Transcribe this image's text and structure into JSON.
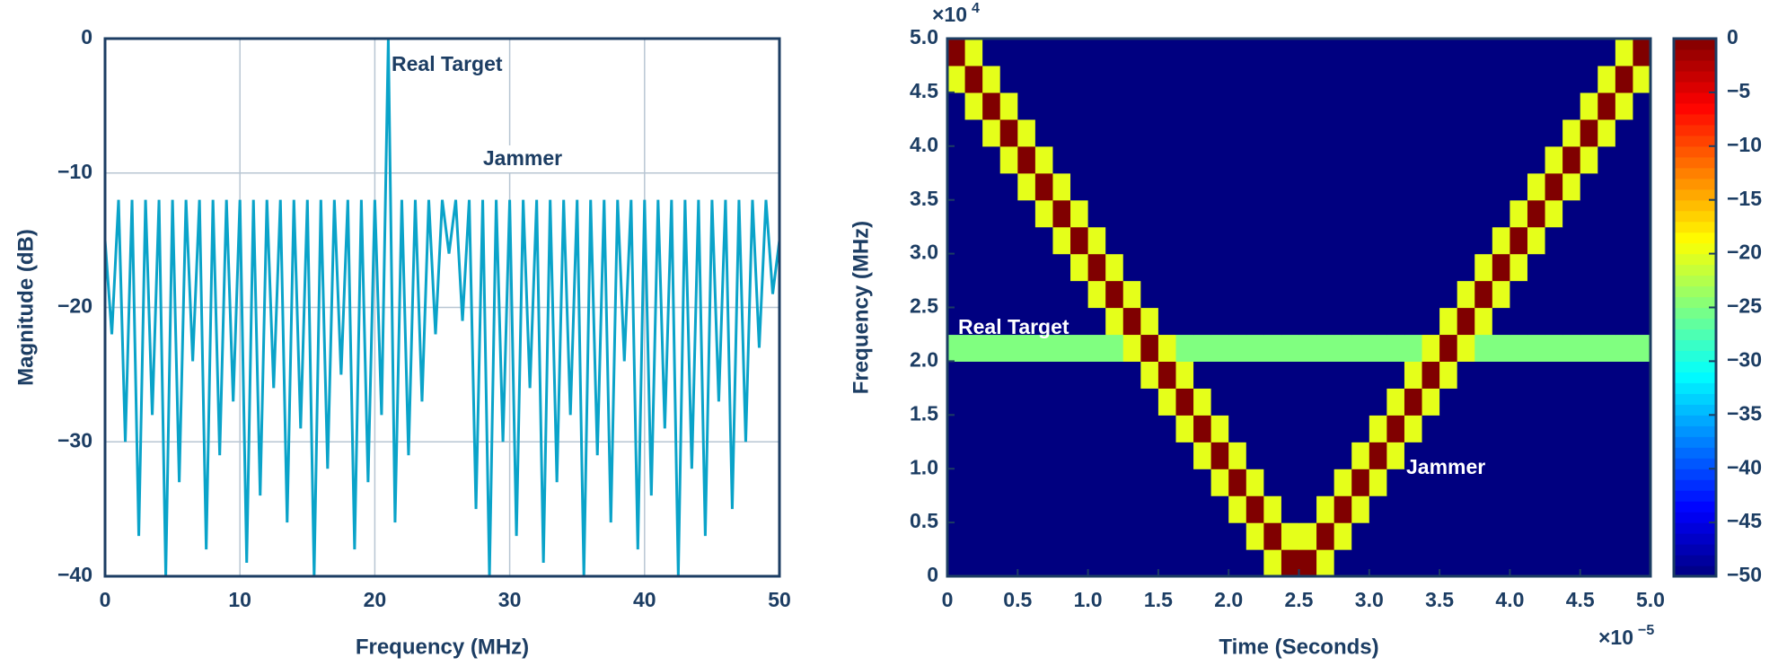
{
  "chart_data": [
    {
      "type": "line",
      "xlabel": "Frequency (MHz)",
      "ylabel": "Magnitude (dB)",
      "color": "#0aa3c9",
      "grid": true,
      "xlim": [
        0,
        50
      ],
      "ylim": [
        -40,
        0
      ],
      "xticks": [
        0,
        10,
        20,
        30,
        40,
        50
      ],
      "yticks": [
        0,
        {
          "value": -10,
          "label": "−10"
        },
        {
          "value": -20,
          "label": "−20"
        },
        {
          "value": -30,
          "label": "−30"
        },
        {
          "value": -40,
          "label": "−40"
        }
      ],
      "annotations": [
        "Real Target",
        "Jammer"
      ],
      "x": [
        0,
        0.5,
        1,
        1.5,
        2,
        2.5,
        3,
        3.5,
        4,
        4.5,
        5,
        5.5,
        6,
        6.5,
        7,
        7.5,
        8,
        8.5,
        9,
        9.5,
        10,
        10.5,
        11,
        11.5,
        12,
        12.5,
        13,
        13.5,
        14,
        14.5,
        15,
        15.5,
        16,
        16.5,
        17,
        17.5,
        18,
        18.5,
        19,
        19.5,
        20,
        20.5,
        21,
        21.5,
        22,
        22.5,
        23,
        23.5,
        24,
        24.5,
        25,
        25.5,
        26,
        26.5,
        27,
        27.5,
        28,
        28.5,
        29,
        29.5,
        30,
        30.5,
        31,
        31.5,
        32,
        32.5,
        33,
        33.5,
        34,
        34.5,
        35,
        35.5,
        36,
        36.5,
        37,
        37.5,
        38,
        38.5,
        39,
        39.5,
        40,
        40.5,
        41,
        41.5,
        42,
        42.5,
        43,
        43.5,
        44,
        44.5,
        45,
        45.5,
        46,
        46.5,
        47,
        47.5,
        48,
        48.5,
        49,
        49.5,
        50
      ],
      "values": [
        -15,
        -22,
        -12,
        -30,
        -12,
        -37,
        -12,
        -28,
        -12,
        -40,
        -12,
        -33,
        -12,
        -24,
        -12,
        -38,
        -12,
        -31,
        -12,
        -27,
        -12,
        -39,
        -12,
        -34,
        -12,
        -26,
        -12,
        -36,
        -12,
        -29,
        -12,
        -40,
        -12,
        -32,
        -12,
        -25,
        -12,
        -38,
        -12,
        -33,
        -12,
        -28,
        0,
        -36,
        -12,
        -31,
        -12,
        -27,
        -12,
        -22,
        -12,
        -16,
        -12,
        -21,
        -12,
        -35,
        -12,
        -40,
        -12,
        -30,
        -12,
        -37,
        -12,
        -26,
        -12,
        -39,
        -12,
        -33,
        -12,
        -28,
        -12,
        -40,
        -12,
        -31,
        -12,
        -36,
        -12,
        -24,
        -12,
        -38,
        -12,
        -34,
        -12,
        -29,
        -12,
        -40,
        -12,
        -32,
        -12,
        -37,
        -12,
        -27,
        -12,
        -35,
        -12,
        -30,
        -12,
        -23,
        -12,
        -19,
        -15
      ]
    },
    {
      "type": "heatmap",
      "xlabel": "Time (Seconds)",
      "ylabel": "Frequency (MHz)",
      "colormap": "jet",
      "xlim": [
        0,
        5
      ],
      "ylim": [
        0,
        5
      ],
      "x_multiplier": {
        "base": "×10",
        "exponent": "−5"
      },
      "y_multiplier": {
        "base": "×10",
        "exponent": "4"
      },
      "xticks": [
        0,
        0.5,
        {
          "value": 1,
          "label": "1.0"
        },
        1.5,
        {
          "value": 2,
          "label": "2.0"
        },
        2.5,
        {
          "value": 3,
          "label": "3.0"
        },
        3.5,
        {
          "value": 4,
          "label": "4.0"
        },
        4.5,
        {
          "value": 5,
          "label": "5.0"
        }
      ],
      "yticks": [
        0,
        0.5,
        {
          "value": 1,
          "label": "1.0"
        },
        1.5,
        {
          "value": 2,
          "label": "2.0"
        },
        2.5,
        {
          "value": 3,
          "label": "3.0"
        },
        3.5,
        {
          "value": 4,
          "label": "4.0"
        },
        4.5,
        {
          "value": 5,
          "label": "5.0"
        }
      ],
      "annotations": [
        "Real Target",
        "Jammer"
      ],
      "colorbar": {
        "lim": [
          -50,
          0
        ],
        "ticks": [
          0,
          {
            "value": -5,
            "label": "−5"
          },
          {
            "value": -10,
            "label": "−10"
          },
          {
            "value": -15,
            "label": "−15"
          },
          {
            "value": -20,
            "label": "−20"
          },
          {
            "value": -25,
            "label": "−25"
          },
          {
            "value": -30,
            "label": "−30"
          },
          {
            "value": -35,
            "label": "−35"
          },
          {
            "value": -40,
            "label": "−40"
          },
          {
            "value": -45,
            "label": "−45"
          },
          {
            "value": -50,
            "label": "−50"
          }
        ]
      },
      "z": [
        [
          -50,
          -50,
          -50,
          -50,
          -50,
          -50,
          -50,
          -50,
          -50,
          -50,
          -50,
          -50,
          -50,
          -50,
          -50,
          -50,
          -50,
          -50,
          -20,
          0,
          0,
          -20,
          -50,
          -50,
          -50,
          -50,
          -50,
          -50,
          -50,
          -50,
          -50,
          -50,
          -50,
          -50,
          -50,
          -50,
          -50,
          -50,
          -50,
          -50
        ],
        [
          -50,
          -50,
          -50,
          -50,
          -50,
          -50,
          -50,
          -50,
          -50,
          -50,
          -50,
          -50,
          -50,
          -50,
          -50,
          -50,
          -50,
          -20,
          0,
          -20,
          -20,
          0,
          -20,
          -50,
          -50,
          -50,
          -50,
          -50,
          -50,
          -50,
          -50,
          -50,
          -50,
          -50,
          -50,
          -50,
          -50,
          -50,
          -50,
          -50
        ],
        [
          -50,
          -50,
          -50,
          -50,
          -50,
          -50,
          -50,
          -50,
          -50,
          -50,
          -50,
          -50,
          -50,
          -50,
          -50,
          -50,
          -20,
          0,
          -20,
          -50,
          -50,
          -20,
          0,
          -20,
          -50,
          -50,
          -50,
          -50,
          -50,
          -50,
          -50,
          -50,
          -50,
          -50,
          -50,
          -50,
          -50,
          -50,
          -50,
          -50
        ],
        [
          -50,
          -50,
          -50,
          -50,
          -50,
          -50,
          -50,
          -50,
          -50,
          -50,
          -50,
          -50,
          -50,
          -50,
          -50,
          -20,
          0,
          -20,
          -50,
          -50,
          -50,
          -50,
          -20,
          0,
          -20,
          -50,
          -50,
          -50,
          -50,
          -50,
          -50,
          -50,
          -50,
          -50,
          -50,
          -50,
          -50,
          -50,
          -50,
          -50
        ],
        [
          -50,
          -50,
          -50,
          -50,
          -50,
          -50,
          -50,
          -50,
          -50,
          -50,
          -50,
          -50,
          -50,
          -50,
          -20,
          0,
          -20,
          -50,
          -50,
          -50,
          -50,
          -50,
          -50,
          -20,
          0,
          -20,
          -50,
          -50,
          -50,
          -50,
          -50,
          -50,
          -50,
          -50,
          -50,
          -50,
          -50,
          -50,
          -50,
          -50
        ],
        [
          -50,
          -50,
          -50,
          -50,
          -50,
          -50,
          -50,
          -50,
          -50,
          -50,
          -50,
          -50,
          -50,
          -20,
          0,
          -20,
          -50,
          -50,
          -50,
          -50,
          -50,
          -50,
          -50,
          -50,
          -20,
          0,
          -20,
          -50,
          -50,
          -50,
          -50,
          -50,
          -50,
          -50,
          -50,
          -50,
          -50,
          -50,
          -50,
          -50
        ],
        [
          -50,
          -50,
          -50,
          -50,
          -50,
          -50,
          -50,
          -50,
          -50,
          -50,
          -50,
          -50,
          -20,
          0,
          -20,
          -50,
          -50,
          -50,
          -50,
          -50,
          -50,
          -50,
          -50,
          -50,
          -50,
          -20,
          0,
          -20,
          -50,
          -50,
          -50,
          -50,
          -50,
          -50,
          -50,
          -50,
          -50,
          -50,
          -50,
          -50
        ],
        [
          -50,
          -50,
          -50,
          -50,
          -50,
          -50,
          -50,
          -50,
          -50,
          -50,
          -50,
          -20,
          0,
          -20,
          -50,
          -50,
          -50,
          -50,
          -50,
          -50,
          -50,
          -50,
          -50,
          -50,
          -50,
          -50,
          -20,
          0,
          -20,
          -50,
          -50,
          -50,
          -50,
          -50,
          -50,
          -50,
          -50,
          -50,
          -50,
          -50
        ],
        [
          -25,
          -25,
          -25,
          -25,
          -25,
          -25,
          -25,
          -25,
          -25,
          -25,
          -20,
          0,
          -20,
          -25,
          -25,
          -25,
          -25,
          -25,
          -25,
          -25,
          -25,
          -25,
          -25,
          -25,
          -25,
          -25,
          -25,
          -20,
          0,
          -20,
          -25,
          -25,
          -25,
          -25,
          -25,
          -25,
          -25,
          -25,
          -25,
          -25
        ],
        [
          -50,
          -50,
          -50,
          -50,
          -50,
          -50,
          -50,
          -50,
          -50,
          -20,
          0,
          -20,
          -50,
          -50,
          -50,
          -50,
          -50,
          -50,
          -50,
          -50,
          -50,
          -50,
          -50,
          -50,
          -50,
          -50,
          -50,
          -50,
          -20,
          0,
          -20,
          -50,
          -50,
          -50,
          -50,
          -50,
          -50,
          -50,
          -50,
          -50
        ],
        [
          -50,
          -50,
          -50,
          -50,
          -50,
          -50,
          -50,
          -50,
          -20,
          0,
          -20,
          -50,
          -50,
          -50,
          -50,
          -50,
          -50,
          -50,
          -50,
          -50,
          -50,
          -50,
          -50,
          -50,
          -50,
          -50,
          -50,
          -50,
          -50,
          -20,
          0,
          -20,
          -50,
          -50,
          -50,
          -50,
          -50,
          -50,
          -50,
          -50
        ],
        [
          -50,
          -50,
          -50,
          -50,
          -50,
          -50,
          -50,
          -20,
          0,
          -20,
          -50,
          -50,
          -50,
          -50,
          -50,
          -50,
          -50,
          -50,
          -50,
          -50,
          -50,
          -50,
          -50,
          -50,
          -50,
          -50,
          -50,
          -50,
          -50,
          -50,
          -20,
          0,
          -20,
          -50,
          -50,
          -50,
          -50,
          -50,
          -50,
          -50
        ],
        [
          -50,
          -50,
          -50,
          -50,
          -50,
          -50,
          -20,
          0,
          -20,
          -50,
          -50,
          -50,
          -50,
          -50,
          -50,
          -50,
          -50,
          -50,
          -50,
          -50,
          -50,
          -50,
          -50,
          -50,
          -50,
          -50,
          -50,
          -50,
          -50,
          -50,
          -50,
          -20,
          0,
          -20,
          -50,
          -50,
          -50,
          -50,
          -50,
          -50
        ],
        [
          -50,
          -50,
          -50,
          -50,
          -50,
          -20,
          0,
          -20,
          -50,
          -50,
          -50,
          -50,
          -50,
          -50,
          -50,
          -50,
          -50,
          -50,
          -50,
          -50,
          -50,
          -50,
          -50,
          -50,
          -50,
          -50,
          -50,
          -50,
          -50,
          -50,
          -50,
          -50,
          -20,
          0,
          -20,
          -50,
          -50,
          -50,
          -50,
          -50
        ],
        [
          -50,
          -50,
          -50,
          -50,
          -20,
          0,
          -20,
          -50,
          -50,
          -50,
          -50,
          -50,
          -50,
          -50,
          -50,
          -50,
          -50,
          -50,
          -50,
          -50,
          -50,
          -50,
          -50,
          -50,
          -50,
          -50,
          -50,
          -50,
          -50,
          -50,
          -50,
          -50,
          -50,
          -20,
          0,
          -20,
          -50,
          -50,
          -50,
          -50
        ],
        [
          -50,
          -50,
          -50,
          -20,
          0,
          -20,
          -50,
          -50,
          -50,
          -50,
          -50,
          -50,
          -50,
          -50,
          -50,
          -50,
          -50,
          -50,
          -50,
          -50,
          -50,
          -50,
          -50,
          -50,
          -50,
          -50,
          -50,
          -50,
          -50,
          -50,
          -50,
          -50,
          -50,
          -50,
          -20,
          0,
          -20,
          -50,
          -50,
          -50
        ],
        [
          -50,
          -50,
          -20,
          0,
          -20,
          -50,
          -50,
          -50,
          -50,
          -50,
          -50,
          -50,
          -50,
          -50,
          -50,
          -50,
          -50,
          -50,
          -50,
          -50,
          -50,
          -50,
          -50,
          -50,
          -50,
          -50,
          -50,
          -50,
          -50,
          -50,
          -50,
          -50,
          -50,
          -50,
          -50,
          -20,
          0,
          -20,
          -50,
          -50
        ],
        [
          -50,
          -20,
          0,
          -20,
          -50,
          -50,
          -50,
          -50,
          -50,
          -50,
          -50,
          -50,
          -50,
          -50,
          -50,
          -50,
          -50,
          -50,
          -50,
          -50,
          -50,
          -50,
          -50,
          -50,
          -50,
          -50,
          -50,
          -50,
          -50,
          -50,
          -50,
          -50,
          -50,
          -50,
          -50,
          -50,
          -20,
          0,
          -20,
          -50
        ],
        [
          -20,
          0,
          -20,
          -50,
          -50,
          -50,
          -50,
          -50,
          -50,
          -50,
          -50,
          -50,
          -50,
          -50,
          -50,
          -50,
          -50,
          -50,
          -50,
          -50,
          -50,
          -50,
          -50,
          -50,
          -50,
          -50,
          -50,
          -50,
          -50,
          -50,
          -50,
          -50,
          -50,
          -50,
          -50,
          -50,
          -50,
          -20,
          0,
          -20
        ],
        [
          0,
          -20,
          -50,
          -50,
          -50,
          -50,
          -50,
          -50,
          -50,
          -50,
          -50,
          -50,
          -50,
          -50,
          -50,
          -50,
          -50,
          -50,
          -50,
          -50,
          -50,
          -50,
          -50,
          -50,
          -50,
          -50,
          -50,
          -50,
          -50,
          -50,
          -50,
          -50,
          -50,
          -50,
          -50,
          -50,
          -50,
          -50,
          -20,
          0
        ]
      ]
    }
  ]
}
